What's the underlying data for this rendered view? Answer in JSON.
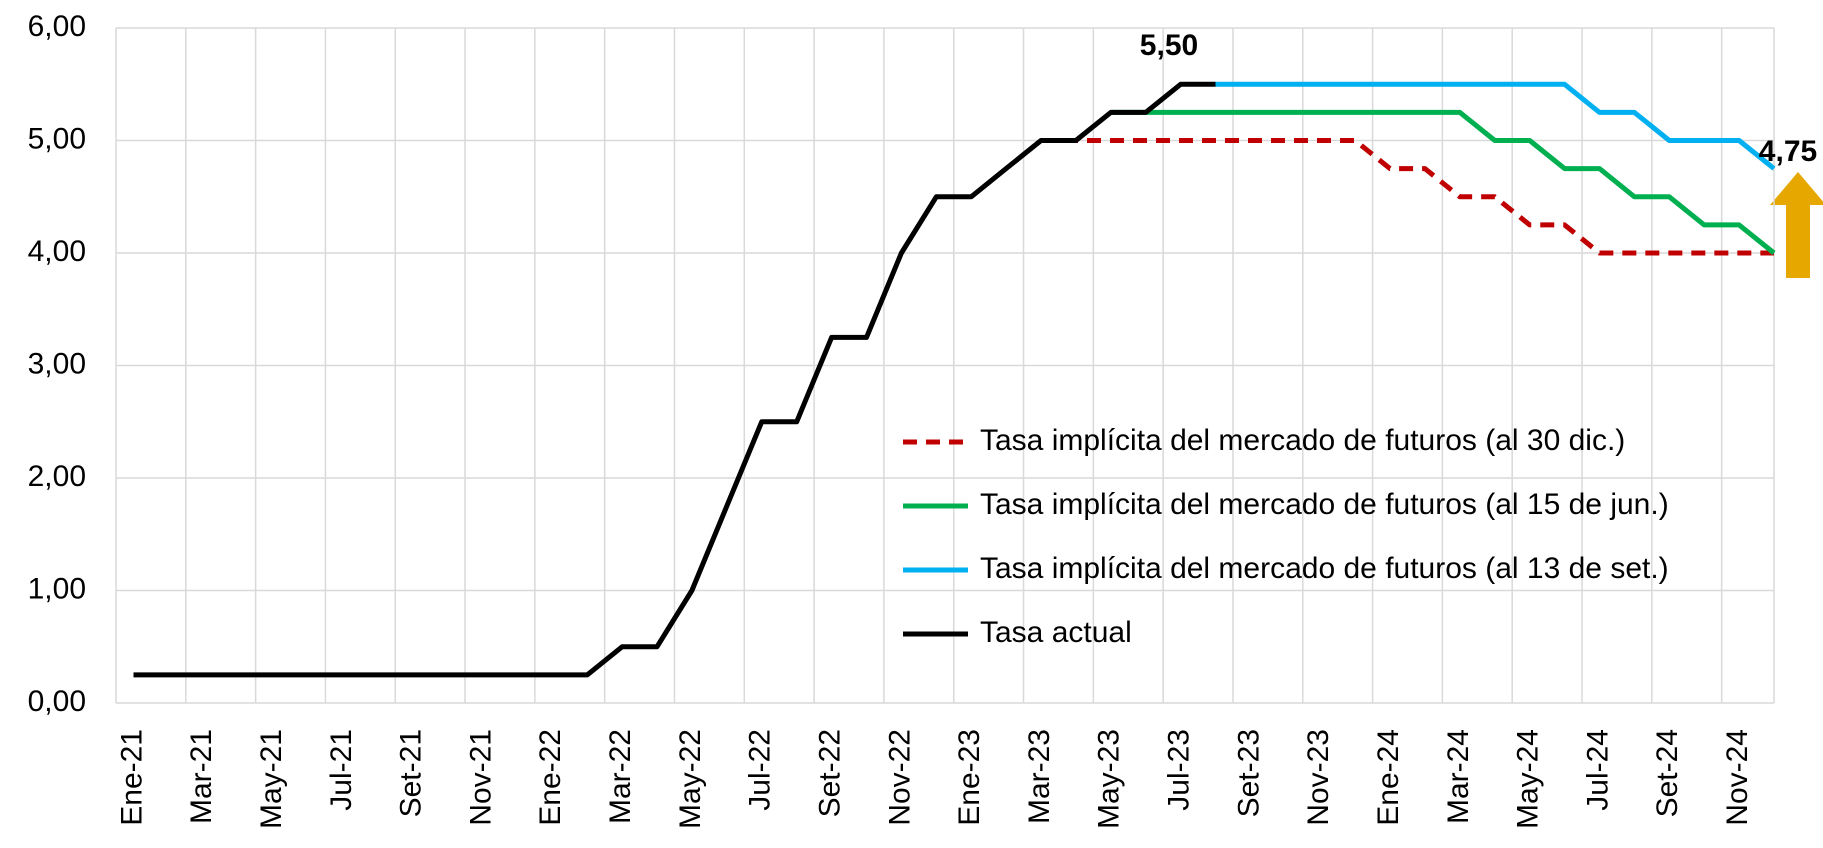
{
  "chart_data": {
    "type": "line",
    "categories": [
      "Ene-21",
      null,
      "Mar-21",
      null,
      "May-21",
      null,
      "Jul-21",
      null,
      "Set-21",
      null,
      "Nov-21",
      null,
      "Ene-22",
      null,
      "Mar-22",
      null,
      "May-22",
      null,
      "Jul-22",
      null,
      "Set-22",
      null,
      "Nov-22",
      null,
      "Ene-23",
      null,
      "Mar-23",
      null,
      "May-23",
      null,
      "Jul-23",
      null,
      "Set-23",
      null,
      "Nov-23",
      null,
      "Ene-24",
      null,
      "Mar-24",
      null,
      "May-24",
      null,
      "Jul-24",
      null,
      "Set-24",
      null,
      "Nov-24",
      null
    ],
    "series": [
      {
        "name": "Tasa implícita del mercado de futuros (al 30 dic.)",
        "color": "#c00000",
        "dashed": true,
        "values": [
          null,
          null,
          null,
          null,
          null,
          null,
          null,
          null,
          null,
          null,
          null,
          null,
          null,
          null,
          null,
          null,
          null,
          null,
          null,
          null,
          null,
          null,
          null,
          null,
          null,
          null,
          5.0,
          5.0,
          5.0,
          5.0,
          5.0,
          5.0,
          5.0,
          5.0,
          5.0,
          5.0,
          4.75,
          4.75,
          4.5,
          4.5,
          4.25,
          4.25,
          4.0,
          4.0,
          4.0,
          4.0,
          4.0,
          4.0
        ]
      },
      {
        "name": "Tasa implícita del mercado de futuros (al 15 de jun.)",
        "color": "#00b050",
        "values": [
          null,
          null,
          null,
          null,
          null,
          null,
          null,
          null,
          null,
          null,
          null,
          null,
          null,
          null,
          null,
          null,
          null,
          null,
          null,
          null,
          null,
          null,
          null,
          null,
          null,
          null,
          null,
          null,
          5.25,
          5.25,
          5.25,
          5.25,
          5.25,
          5.25,
          5.25,
          5.25,
          5.25,
          5.25,
          5.25,
          5.0,
          5.0,
          4.75,
          4.75,
          4.5,
          4.5,
          4.25,
          4.25,
          4.0
        ]
      },
      {
        "name": "Tasa implícita del mercado de futuros (al 13 de set.)",
        "color": "#00b0f0",
        "values": [
          null,
          null,
          null,
          null,
          null,
          null,
          null,
          null,
          null,
          null,
          null,
          null,
          null,
          null,
          null,
          null,
          null,
          null,
          null,
          null,
          null,
          null,
          null,
          null,
          null,
          null,
          null,
          null,
          null,
          null,
          null,
          5.5,
          5.5,
          5.5,
          5.5,
          5.5,
          5.5,
          5.5,
          5.5,
          5.5,
          5.5,
          5.5,
          5.25,
          5.25,
          5.0,
          5.0,
          5.0,
          4.75
        ]
      },
      {
        "name": "Tasa actual",
        "color": "#000000",
        "values": [
          0.25,
          0.25,
          0.25,
          0.25,
          0.25,
          0.25,
          0.25,
          0.25,
          0.25,
          0.25,
          0.25,
          0.25,
          0.25,
          0.25,
          0.5,
          0.5,
          1.0,
          1.75,
          2.5,
          2.5,
          3.25,
          3.25,
          4.0,
          4.5,
          4.5,
          4.75,
          5.0,
          5.0,
          5.25,
          5.25,
          5.5,
          5.5,
          null,
          null,
          null,
          null,
          null,
          null,
          null,
          null,
          null,
          null,
          null,
          null,
          null,
          null,
          null,
          null
        ]
      }
    ],
    "annotations": [
      "5,50",
      "4,75"
    ],
    "ylim": [
      0,
      6
    ],
    "yticks": [
      {
        "value": 0,
        "label": "0,00"
      },
      {
        "value": 1,
        "label": "1,00"
      },
      {
        "value": 2,
        "label": "2,00"
      },
      {
        "value": 3,
        "label": "3,00"
      },
      {
        "value": 4,
        "label": "4,00"
      },
      {
        "value": 5,
        "label": "5,00"
      },
      {
        "value": 6,
        "label": "6,00"
      }
    ],
    "grid": true
  }
}
